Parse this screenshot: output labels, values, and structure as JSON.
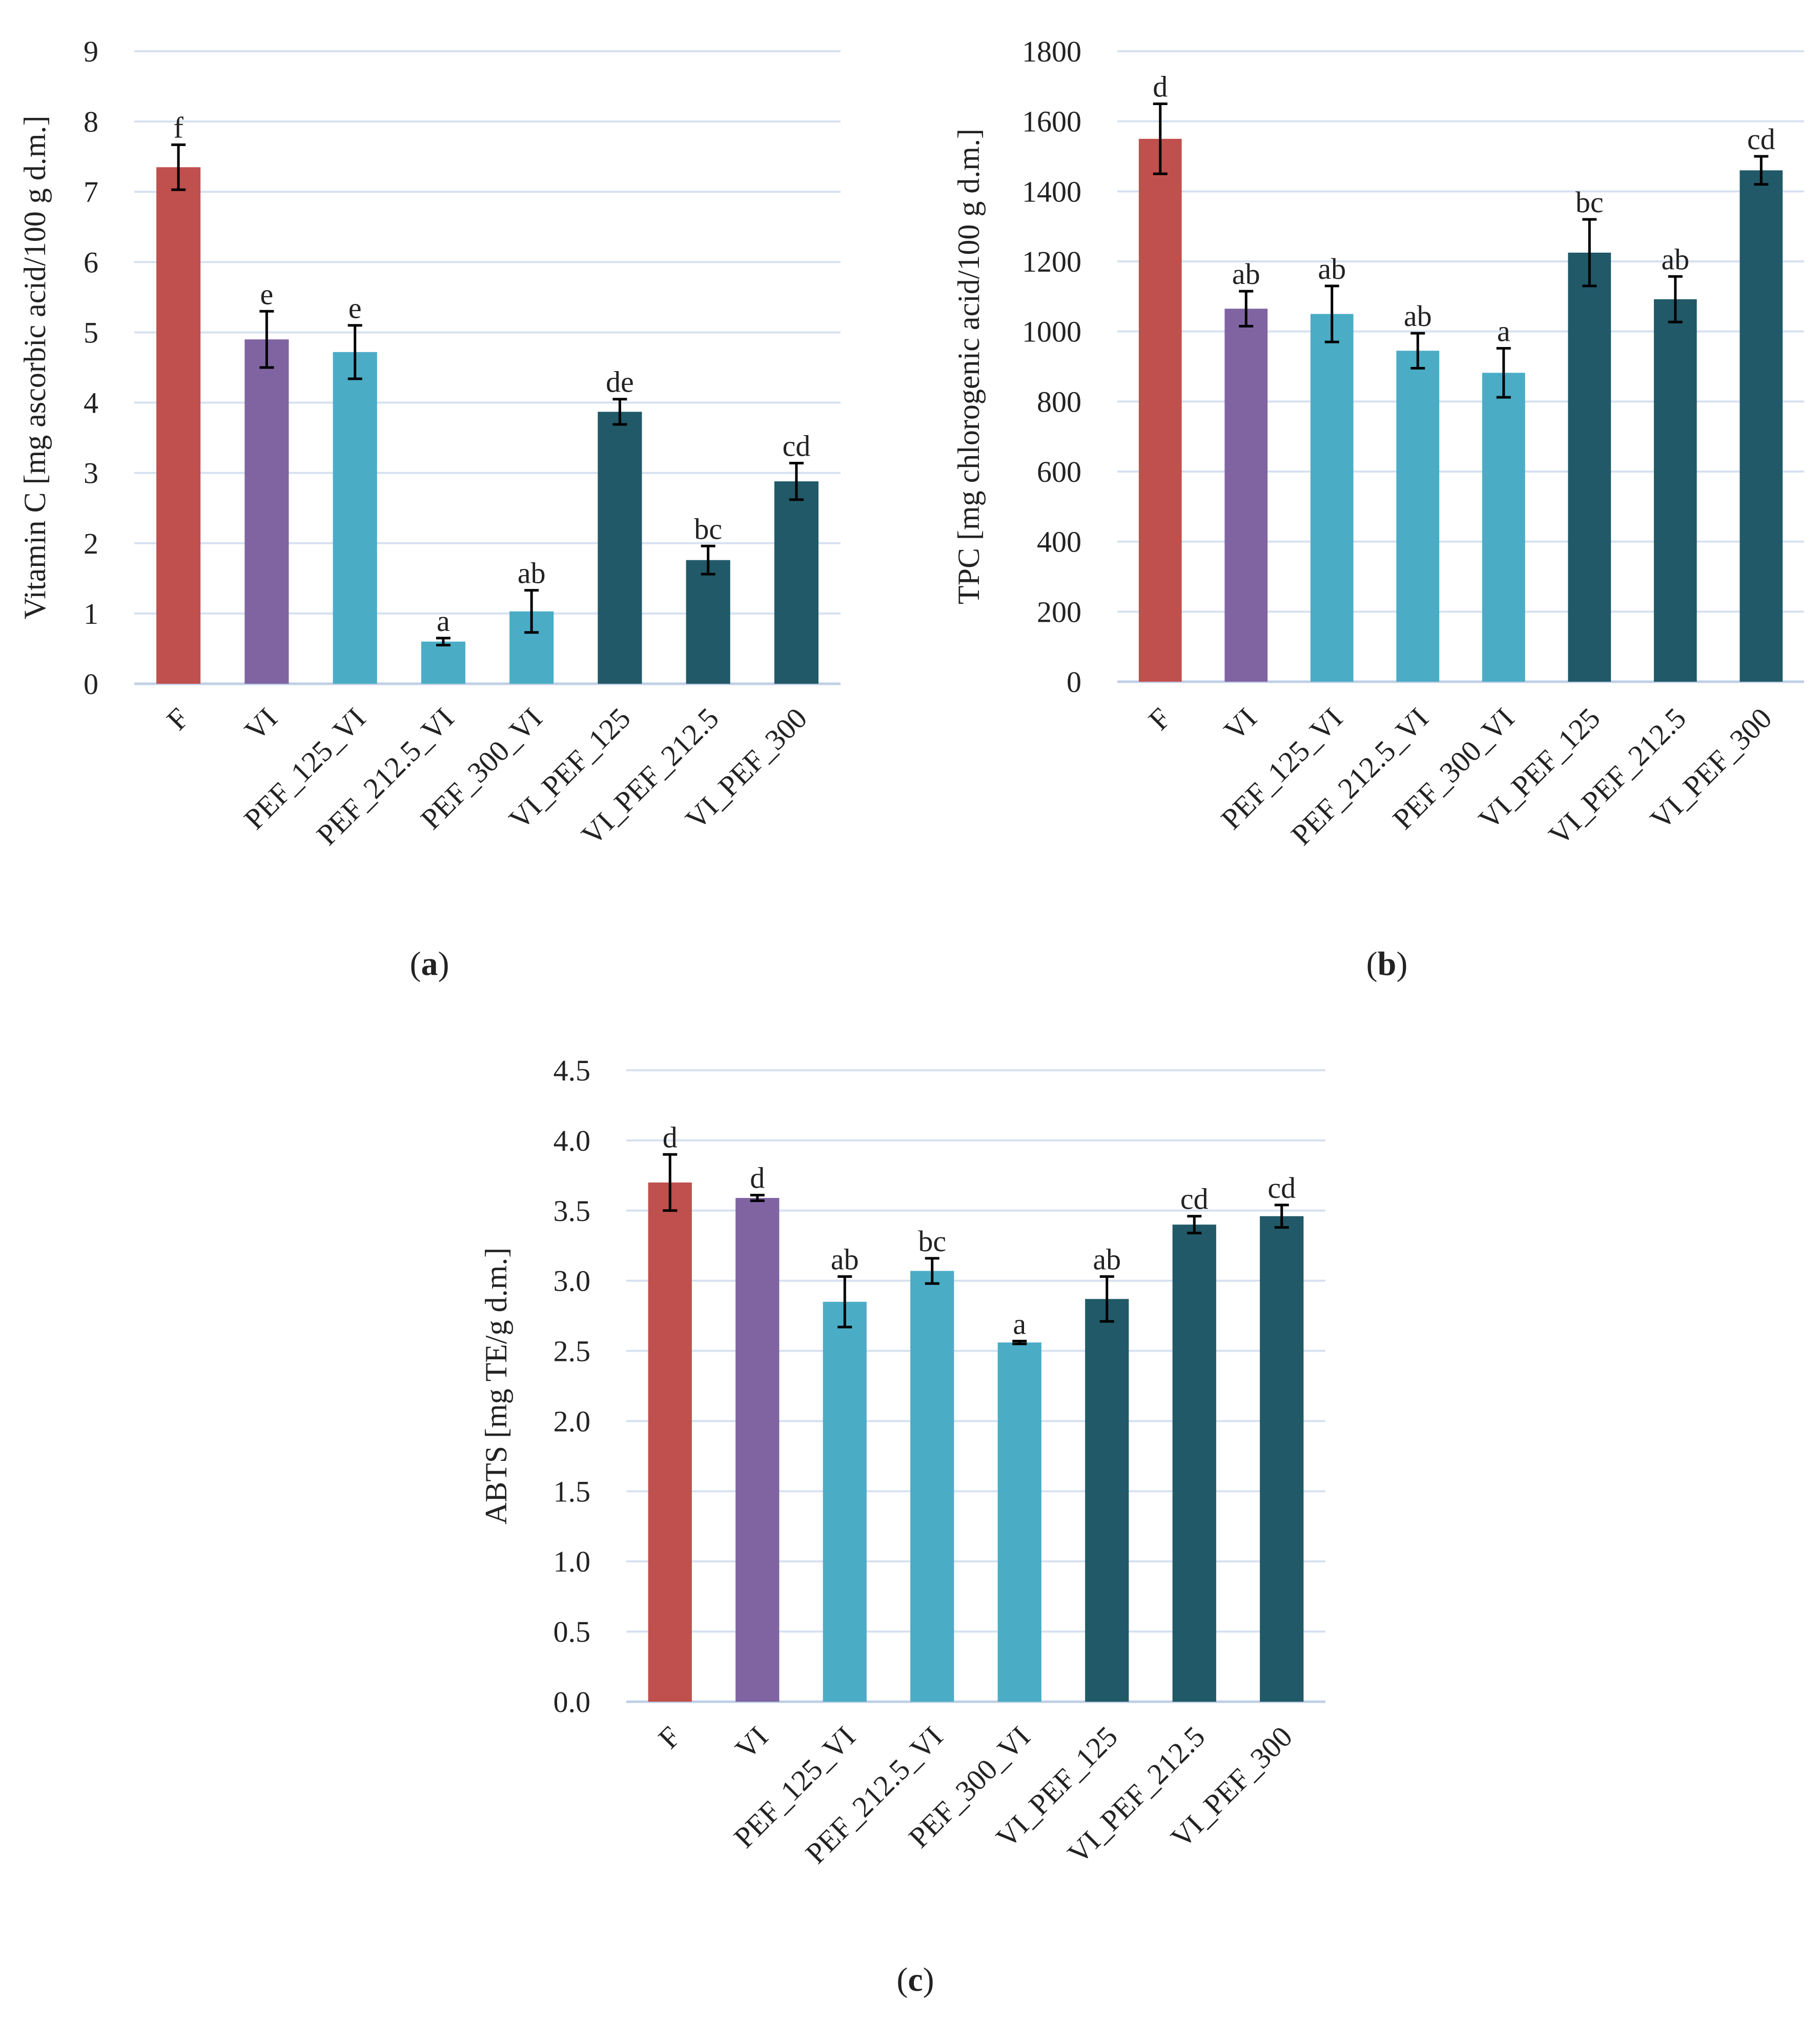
{
  "figure": {
    "panel_labels": [
      {
        "open": "(",
        "letter": "a",
        "close": ")"
      },
      {
        "open": "(",
        "letter": "b",
        "close": ")"
      },
      {
        "open": "(",
        "letter": "c",
        "close": ")"
      }
    ]
  },
  "colors": {
    "F": "#c0504d",
    "VI": "#8064a2",
    "PEF_VI": "#4bacc6",
    "VI_PEF": "#215968",
    "grid": "#d6e1f0",
    "axis": "#bfcfe6",
    "error_bar": "#000000"
  },
  "chart_data": [
    {
      "type": "bar",
      "panel": "a",
      "title": "",
      "xlabel": "",
      "ylabel": "Vitamin C [mg ascorbic acid/100 g d.m.]",
      "ylim": [
        0,
        9
      ],
      "yticks": [
        "0",
        "1",
        "2",
        "3",
        "4",
        "5",
        "6",
        "7",
        "8",
        "9"
      ],
      "grid": true,
      "categories": [
        "F",
        "VI",
        "PEF_125_VI",
        "PEF_212.5_VI",
        "PEF_300_VI",
        "VI_PEF_125",
        "VI_PEF_212.5",
        "VI_PEF_300"
      ],
      "values": [
        7.35,
        4.9,
        4.72,
        0.6,
        1.03,
        3.87,
        1.76,
        2.88
      ],
      "errors": [
        0.32,
        0.4,
        0.38,
        0.05,
        0.3,
        0.18,
        0.2,
        0.26
      ],
      "letters": [
        "f",
        "e",
        "e",
        "a",
        "ab",
        "de",
        "bc",
        "cd"
      ],
      "groups": [
        "F",
        "VI",
        "PEF_VI",
        "PEF_VI",
        "PEF_VI",
        "VI_PEF",
        "VI_PEF",
        "VI_PEF"
      ]
    },
    {
      "type": "bar",
      "panel": "b",
      "title": "",
      "xlabel": "",
      "ylabel": "TPC [mg chlorogenic acid/100 g d.m.]",
      "ylim": [
        0,
        1800
      ],
      "yticks": [
        "0",
        "200",
        "400",
        "600",
        "800",
        "1000",
        "1200",
        "1400",
        "1600",
        "1800"
      ],
      "grid": true,
      "categories": [
        "F",
        "VI",
        "PEF_125_VI",
        "PEF_212.5_VI",
        "PEF_300_VI",
        "VI_PEF_125",
        "VI_PEF_212.5",
        "VI_PEF_300"
      ],
      "values": [
        1550,
        1065,
        1050,
        945,
        882,
        1225,
        1092,
        1460
      ],
      "errors": [
        100,
        50,
        80,
        50,
        70,
        95,
        65,
        40
      ],
      "letters": [
        "d",
        "ab",
        "ab",
        "ab",
        "a",
        "bc",
        "ab",
        "cd"
      ],
      "groups": [
        "F",
        "VI",
        "PEF_VI",
        "PEF_VI",
        "PEF_VI",
        "VI_PEF",
        "VI_PEF",
        "VI_PEF"
      ]
    },
    {
      "type": "bar",
      "panel": "c",
      "title": "",
      "xlabel": "",
      "ylabel": "ABTS [mg TE/g d.m.]",
      "ylim": [
        0,
        4.5
      ],
      "yticks": [
        "0.0",
        "0.5",
        "1.0",
        "1.5",
        "2.0",
        "2.5",
        "3.0",
        "3.5",
        "4.0",
        "4.5"
      ],
      "grid": true,
      "categories": [
        "F",
        "VI",
        "PEF_125_VI",
        "PEF_212.5_VI",
        "PEF_300_VI",
        "VI_PEF_125",
        "VI_PEF_212.5",
        "VI_PEF_300"
      ],
      "values": [
        3.7,
        3.59,
        2.85,
        3.07,
        2.56,
        2.87,
        3.4,
        3.46
      ],
      "errors": [
        0.2,
        0.02,
        0.18,
        0.09,
        0.01,
        0.16,
        0.06,
        0.08
      ],
      "letters": [
        "d",
        "d",
        "ab",
        "bc",
        "a",
        "ab",
        "cd",
        "cd"
      ],
      "groups": [
        "F",
        "VI",
        "PEF_VI",
        "PEF_VI",
        "PEF_VI",
        "VI_PEF",
        "VI_PEF",
        "VI_PEF"
      ]
    }
  ]
}
